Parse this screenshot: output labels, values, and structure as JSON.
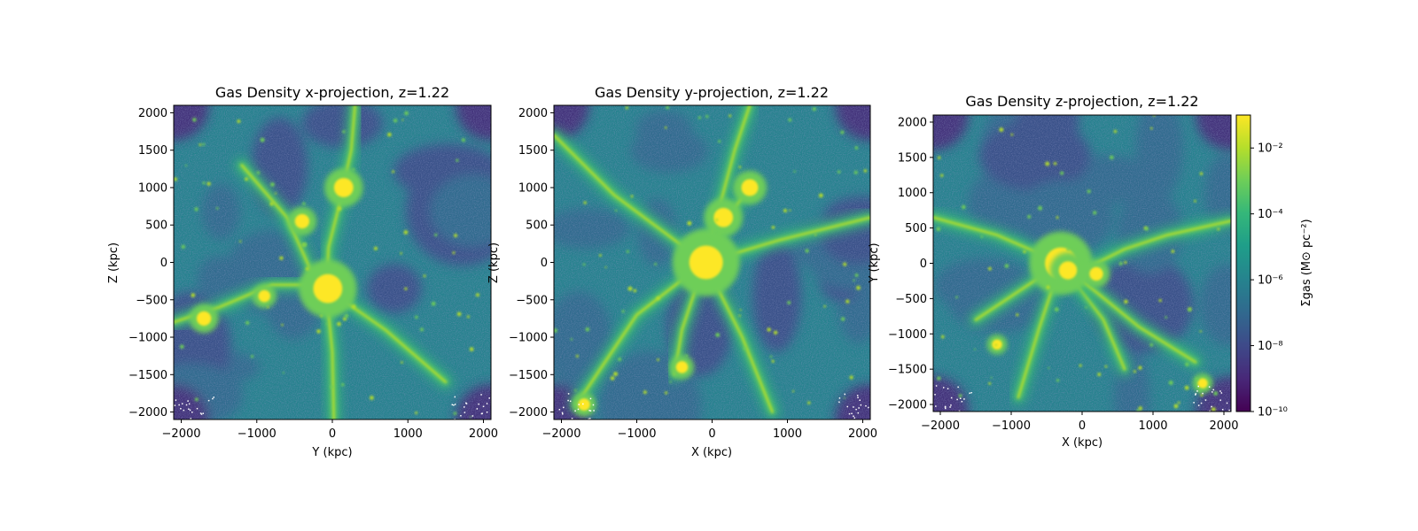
{
  "colors": {
    "cmap": [
      "#440154",
      "#482878",
      "#3e4989",
      "#31688e",
      "#26828e",
      "#1f9e89",
      "#35b779",
      "#6ece58",
      "#b5de2b",
      "#fde725"
    ]
  },
  "chart_data": [
    {
      "type": "heatmap",
      "title": "Gas Density x-projection, z=1.22",
      "xlabel": "Y (kpc)",
      "ylabel": "Z (kpc)",
      "xlim": [
        -2100,
        2100
      ],
      "ylim": [
        -2100,
        2100
      ],
      "xticks": [
        -2000,
        -1000,
        0,
        1000,
        2000
      ],
      "xtick_labels": [
        "−2000",
        "−1000",
        "0",
        "1000",
        "2000"
      ],
      "yticks": [
        -2000,
        -1500,
        -1000,
        -500,
        0,
        500,
        1000,
        1500,
        2000
      ],
      "ytick_labels": [
        "−2000",
        "−1500",
        "−1000",
        "−500",
        "0",
        "500",
        "1000",
        "1500",
        "2000"
      ]
    },
    {
      "type": "heatmap",
      "title": "Gas Density y-projection, z=1.22",
      "xlabel": "X (kpc)",
      "ylabel": "Z (kpc)",
      "xlim": [
        -2100,
        2100
      ],
      "ylim": [
        -2100,
        2100
      ],
      "xticks": [
        -2000,
        -1000,
        0,
        1000,
        2000
      ],
      "xtick_labels": [
        "−2000",
        "−1000",
        "0",
        "1000",
        "2000"
      ],
      "yticks": [
        -2000,
        -1500,
        -1000,
        -500,
        0,
        500,
        1000,
        1500,
        2000
      ],
      "ytick_labels": [
        "−2000",
        "−1500",
        "−1000",
        "−500",
        "0",
        "500",
        "1000",
        "1500",
        "2000"
      ]
    },
    {
      "type": "heatmap",
      "title": "Gas Density z-projection, z=1.22",
      "xlabel": "X (kpc)",
      "ylabel": "Y (kpc)",
      "xlim": [
        -2100,
        2100
      ],
      "ylim": [
        -2100,
        2100
      ],
      "xticks": [
        -2000,
        -1000,
        0,
        1000,
        2000
      ],
      "xtick_labels": [
        "−2000",
        "−1000",
        "0",
        "1000",
        "2000"
      ],
      "yticks": [
        -2000,
        -1500,
        -1000,
        -500,
        0,
        500,
        1000,
        1500,
        2000
      ],
      "ytick_labels": [
        "−2000",
        "−1500",
        "−1000",
        "−500",
        "0",
        "500",
        "1000",
        "1500",
        "2000"
      ],
      "colorbar": {
        "label": "Σgas (M⊙ pc⁻²)",
        "scale": "log",
        "range": [
          1e-10,
          0.1
        ],
        "ticks": [
          -10,
          -8,
          -6,
          -4,
          -2
        ],
        "tick_labels": [
          "10⁻¹⁰",
          "10⁻⁸",
          "10⁻⁶",
          "10⁻⁴",
          "10⁻²"
        ]
      }
    }
  ]
}
